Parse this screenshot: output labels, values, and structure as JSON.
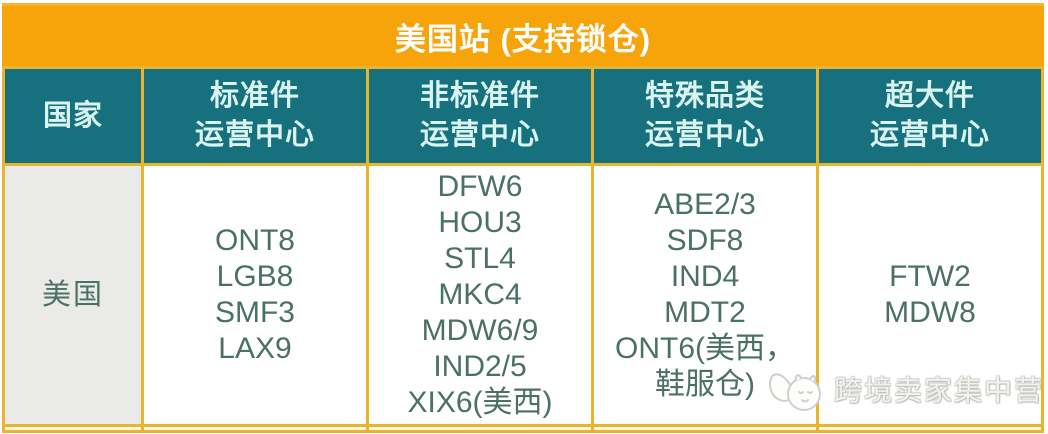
{
  "title": "美国站 (支持锁仓)",
  "columns": [
    {
      "id": "country",
      "lines": [
        "国家"
      ]
    },
    {
      "id": "standard",
      "lines": [
        "标准件",
        "运营中心"
      ]
    },
    {
      "id": "nonstandard",
      "lines": [
        "非标准件",
        "运营中心"
      ]
    },
    {
      "id": "special",
      "lines": [
        "特殊品类",
        "运营中心"
      ]
    },
    {
      "id": "oversize",
      "lines": [
        "超大件",
        "运营中心"
      ]
    }
  ],
  "row": {
    "country": "美国",
    "standard_fcs": [
      "ONT8",
      "LGB8",
      "SMF3",
      "LAX9"
    ],
    "nonstandard_fcs": [
      "DFW6",
      "HOU3",
      "STL4",
      "MKC4",
      "MDW6/9",
      "IND2/5",
      "XIX6(美西)"
    ],
    "special_fcs": [
      "ABE2/3",
      "SDF8",
      "IND4",
      "MDT2",
      "ONT6(美西，",
      "鞋服仓)"
    ],
    "oversize_fcs": [
      "FTW2",
      "MDW8"
    ]
  },
  "watermark": {
    "text": "跨境卖家集中营",
    "logo": "mascot-icon"
  },
  "colors": {
    "title_bg": "#F7A30A",
    "border_gold": "#E9B52F",
    "header_bg": "#17707E",
    "header_text": "#D9F4F0",
    "body_text": "#4B7164",
    "country_cell_bg": "#EAEAE8",
    "watermark_gray": "#D2D2D0"
  }
}
